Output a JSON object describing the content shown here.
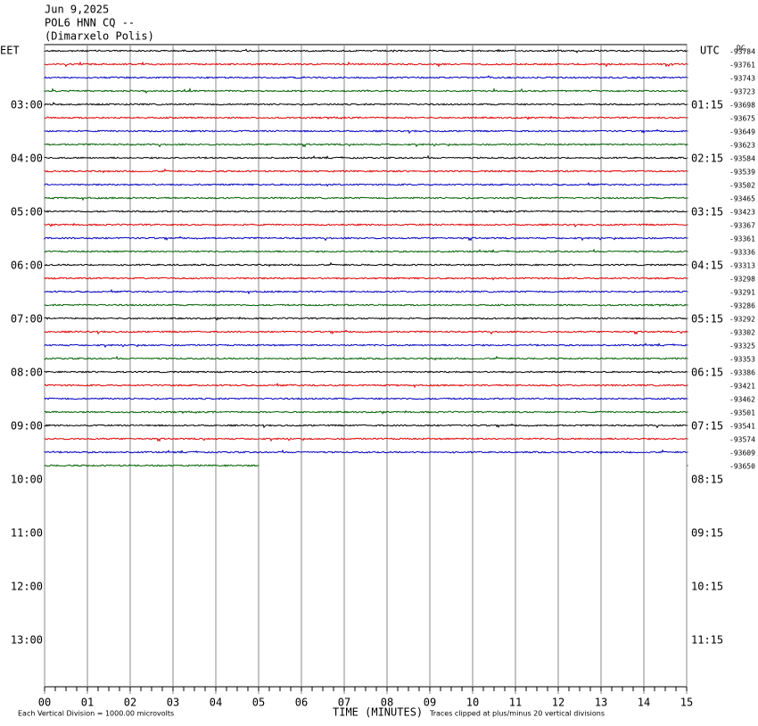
{
  "chart_data": {
    "type": "helicorder",
    "title": [
      "Jun 9,2025",
      "POL6 HNN CQ --",
      "(Dimarxelo Polis)"
    ],
    "left_axis_label": "EET",
    "right_axis_label": "UTC",
    "offset_axis_label": "DC",
    "left_ticks": [
      "03:00",
      "04:00",
      "05:00",
      "06:00",
      "07:00",
      "08:00",
      "09:00",
      "10:00",
      "11:00",
      "12:00",
      "13:00"
    ],
    "right_ticks": [
      "01:15",
      "02:15",
      "03:15",
      "04:15",
      "05:15",
      "06:15",
      "07:15",
      "08:15",
      "09:15",
      "10:15",
      "11:15"
    ],
    "trace_offsets": [
      -93784,
      -93761,
      -93743,
      -93723,
      -93698,
      -93675,
      -93649,
      -93623,
      -93584,
      -93539,
      -93502,
      -93465,
      -93423,
      -93367,
      -93361,
      -93336,
      -93313,
      -93298,
      -93291,
      -93286,
      -93292,
      -93302,
      -93325,
      -93353,
      -93386,
      -93421,
      -93462,
      -93501,
      -93541,
      -93574,
      -93609,
      -93650
    ],
    "trace_colors": [
      "#000000",
      "#e00000",
      "#0000c0",
      "#006000"
    ],
    "last_trace_end": 5,
    "xlim": [
      0,
      15
    ],
    "xticks": [
      {
        "value": 0,
        "label": "00"
      },
      {
        "value": 1,
        "label": "01"
      },
      {
        "value": 2,
        "label": "02"
      },
      {
        "value": 3,
        "label": "03"
      },
      {
        "value": 4,
        "label": "04"
      },
      {
        "value": 5,
        "label": "05"
      },
      {
        "value": 6,
        "label": "06"
      },
      {
        "value": 7,
        "label": "07"
      },
      {
        "value": 8,
        "label": "08"
      },
      {
        "value": 9,
        "label": "09"
      },
      10,
      11,
      12,
      13,
      14,
      15
    ],
    "xlabel": "TIME (MINUTES)",
    "scale_note": "Each Vertical Division = 1000.00 microvolts",
    "clip_note": "Traces clipped at plus/minus 20 vertical divisions"
  }
}
